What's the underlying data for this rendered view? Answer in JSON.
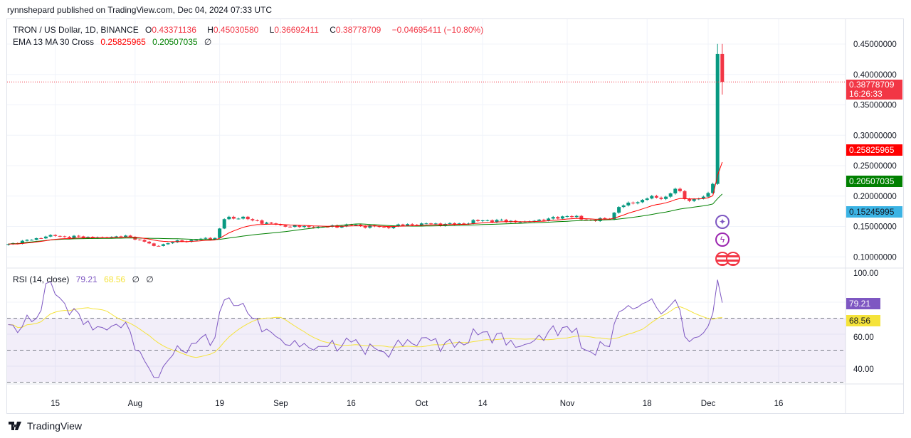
{
  "publisher": "rynnshepard published on TradingView.com, Dec 04, 2024 07:33 UTC",
  "legend": {
    "symbol": "TRON / US Dollar, 1D, BINANCE",
    "open_label": "O",
    "open": "0.43371136",
    "high_label": "H",
    "high": "0.45030580",
    "low_label": "L",
    "low": "0.36692411",
    "close_label": "C",
    "close": "0.38778709",
    "change": "−0.04695411 (−10.80%)",
    "indicator": "EMA 13 MA 30 Cross",
    "ema_value": "0.25825965",
    "ma_value": "0.20507035",
    "ind_extra": "∅"
  },
  "rsi_legend": {
    "label": "RSI (14, close)",
    "rsi": "79.21",
    "ma": "68.56",
    "extra1": "∅",
    "extra2": "∅"
  },
  "price_axis": [
    "0.45000000",
    "0.40000000",
    "0.35000000",
    "0.30000000",
    "0.25000000",
    "0.20000000",
    "0.15000000",
    "0.10000000"
  ],
  "price_axis_values": [
    0.45,
    0.4,
    0.35,
    0.3,
    0.25,
    0.2,
    0.15,
    0.1
  ],
  "tags": {
    "current_price": "0.38778709",
    "countdown": "16:26:33",
    "ema": "0.25825965",
    "ma": "0.20507035",
    "other": "0.15245995"
  },
  "rsi_axis": [
    "100.00",
    "60.00",
    "40.00"
  ],
  "rsi_axis_values": [
    100,
    60,
    40
  ],
  "rsi_tags": {
    "rsi": "79.21",
    "ma": "68.56"
  },
  "time_axis": [
    {
      "label": "15",
      "day": 10
    },
    {
      "label": "Aug",
      "day": 27
    },
    {
      "label": "19",
      "day": 45
    },
    {
      "label": "Sep",
      "day": 58
    },
    {
      "label": "16",
      "day": 73
    },
    {
      "label": "Oct",
      "day": 88
    },
    {
      "label": "14",
      "day": 101
    },
    {
      "label": "Nov",
      "day": 119
    },
    {
      "label": "18",
      "day": 136
    },
    {
      "label": "Dec",
      "day": 149
    },
    {
      "label": "16",
      "day": 164
    }
  ],
  "colors": {
    "up": "#089981",
    "down": "#f23645",
    "ema": "#ff0000",
    "ma": "#008000",
    "rsi": "#7e57c2",
    "rsi_ma": "#f5e33a",
    "other": "#3bb3e4"
  },
  "chart_data": {
    "type": "candlestick",
    "title": "TRON / US Dollar, 1D, BINANCE",
    "start_date": "2024-07-05",
    "close_keyframes": [
      [
        0,
        0.121
      ],
      [
        5,
        0.128
      ],
      [
        9,
        0.136
      ],
      [
        12,
        0.133
      ],
      [
        20,
        0.132
      ],
      [
        25,
        0.135
      ],
      [
        29,
        0.125
      ],
      [
        31,
        0.118
      ],
      [
        35,
        0.124
      ],
      [
        40,
        0.128
      ],
      [
        44,
        0.131
      ],
      [
        46,
        0.162
      ],
      [
        50,
        0.166
      ],
      [
        52,
        0.16
      ],
      [
        58,
        0.152
      ],
      [
        65,
        0.148
      ],
      [
        73,
        0.152
      ],
      [
        80,
        0.149
      ],
      [
        88,
        0.155
      ],
      [
        95,
        0.153
      ],
      [
        101,
        0.16
      ],
      [
        110,
        0.158
      ],
      [
        115,
        0.163
      ],
      [
        119,
        0.167
      ],
      [
        124,
        0.16
      ],
      [
        128,
        0.162
      ],
      [
        130,
        0.182
      ],
      [
        133,
        0.188
      ],
      [
        136,
        0.196
      ],
      [
        140,
        0.199
      ],
      [
        142,
        0.212
      ],
      [
        145,
        0.192
      ],
      [
        148,
        0.199
      ],
      [
        149,
        0.205
      ],
      [
        150,
        0.22
      ],
      [
        151,
        0.43371136
      ],
      [
        152,
        0.38778709
      ]
    ],
    "last_candle": {
      "open": 0.43371136,
      "high": 0.4503058,
      "low": 0.36692411,
      "close": 0.38778709
    },
    "ylim": [
      0.09,
      0.49
    ],
    "rsi_ylim": [
      25,
      105
    ]
  },
  "footer": "TradingView"
}
